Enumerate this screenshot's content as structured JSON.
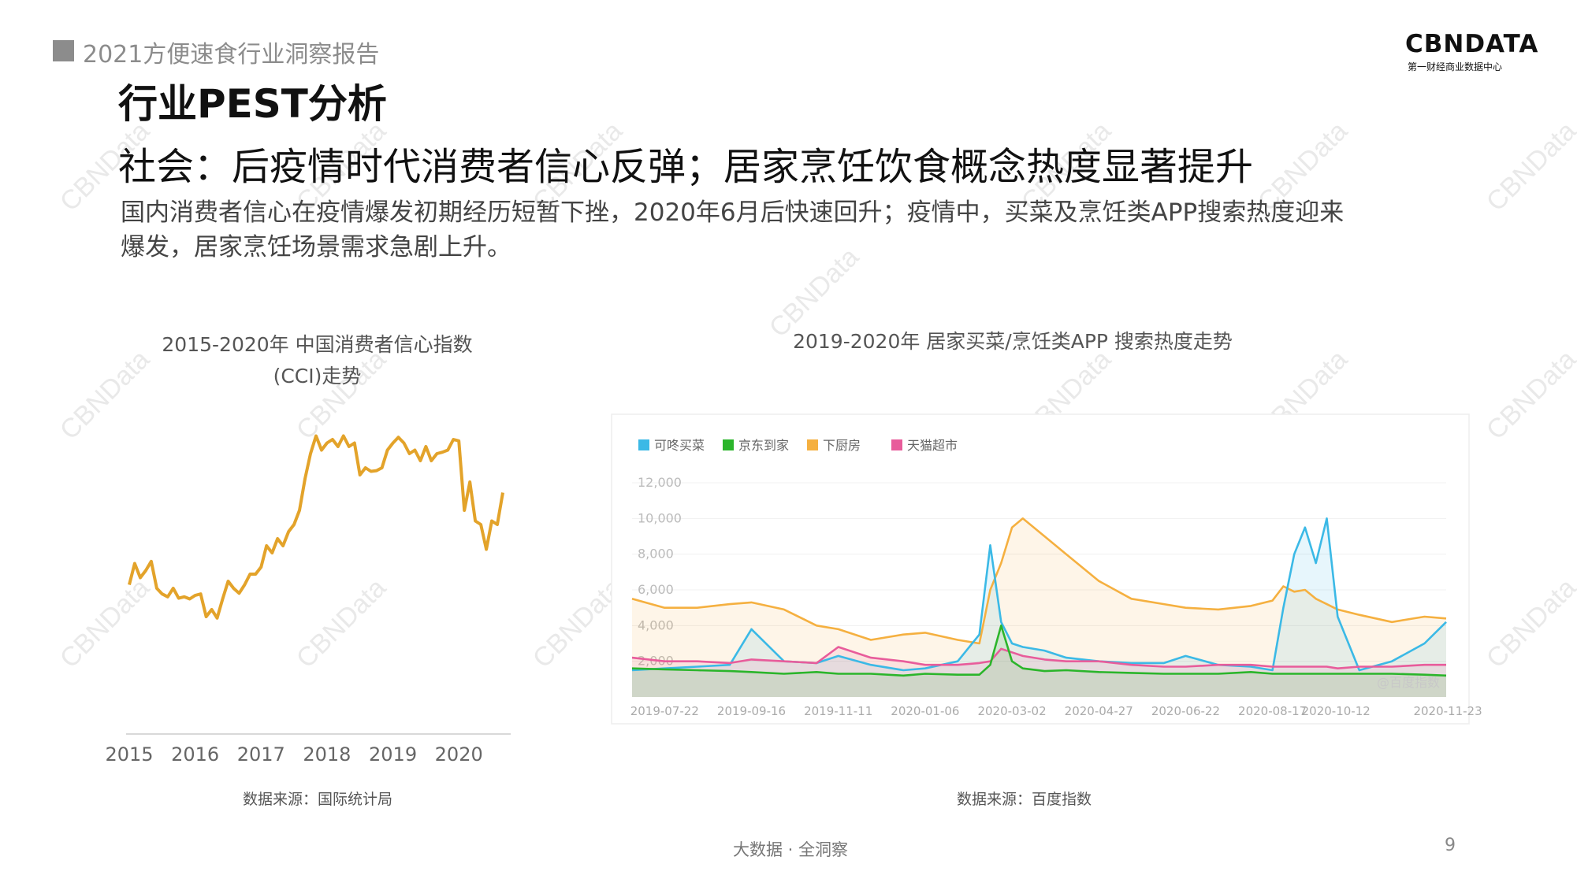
{
  "header": {
    "report_title": "2021方便速食行业洞察报告",
    "logo_text": "CBNDATA",
    "logo_subtitle": "第一财经商业数据中心"
  },
  "section_title": "行业PEST分析",
  "headline": "社会：后疫情时代消费者信心反弹；居家烹饪饮食概念热度显著提升",
  "description": {
    "line1": "国内消费者信心在疫情爆发初期经历短暂下挫，2020年6月后快速回升；疫情中，买菜及烹饪类APP搜索热度迎来",
    "line2": "爆发，居家烹饪场景需求急剧上升。"
  },
  "chart_data": [
    {
      "type": "line",
      "title_line1": "2015-2020年 中国消费者信心指数",
      "title_line2": "(CCI)走势",
      "x_ticks": [
        "2015",
        "2016",
        "2017",
        "2018",
        "2019",
        "2020"
      ],
      "color": "#E3A32A",
      "ylim": [
        95,
        130
      ],
      "series": [
        {
          "x": [
            2015.0,
            2015.083,
            2015.167,
            2015.25,
            2015.333,
            2015.417,
            2015.5,
            2015.583,
            2015.667,
            2015.75,
            2015.833,
            2015.917,
            2016.0,
            2016.083,
            2016.167,
            2016.25,
            2016.333,
            2016.417,
            2016.5,
            2016.583,
            2016.667,
            2016.75,
            2016.833,
            2016.917,
            2017.0,
            2017.083,
            2017.167,
            2017.25,
            2017.333,
            2017.417,
            2017.5,
            2017.583,
            2017.667,
            2017.75,
            2017.833,
            2017.917,
            2018.0,
            2018.083,
            2018.167,
            2018.25,
            2018.333,
            2018.417,
            2018.5,
            2018.583,
            2018.667,
            2018.75,
            2018.833,
            2018.917,
            2019.0,
            2019.083,
            2019.167,
            2019.25,
            2019.333,
            2019.417,
            2019.5,
            2019.583,
            2019.667,
            2019.75,
            2019.833,
            2019.917,
            2020.0,
            2020.083,
            2020.167,
            2020.25,
            2020.333,
            2020.417,
            2020.5,
            2020.583,
            2020.667
          ],
          "y": [
            107.5,
            110.5,
            108.5,
            109.5,
            110.8,
            107.0,
            106.2,
            105.8,
            107.0,
            105.6,
            105.8,
            105.5,
            106.0,
            106.2,
            103.0,
            104.0,
            102.8,
            105.5,
            108.0,
            107.0,
            106.3,
            107.5,
            109.0,
            109.0,
            110.0,
            113.0,
            112.0,
            114.0,
            113.0,
            115.0,
            116.0,
            118.0,
            122.5,
            126.0,
            128.5,
            126.5,
            127.5,
            128.0,
            127.0,
            128.5,
            127.0,
            127.5,
            123.0,
            124.0,
            123.5,
            123.6,
            124.0,
            126.5,
            127.5,
            128.3,
            127.5,
            126.0,
            126.5,
            125.0,
            127.0,
            125.0,
            126.0,
            126.2,
            126.5,
            128.0,
            127.8,
            118.0,
            122.0,
            116.5,
            116.0,
            112.5,
            116.5,
            116.0,
            120.5
          ]
        }
      ],
      "source": "数据来源：国际统计局"
    },
    {
      "type": "area",
      "title": "2019-2020年 居家买菜/烹饪类APP 搜索热度走势",
      "y_ticks": [
        "2,000",
        "4,000",
        "6,000",
        "8,000",
        "10,000",
        "12,000"
      ],
      "ylim": [
        0,
        12000
      ],
      "x_ticks": [
        "2019-07-22",
        "2019-09-16",
        "2019-11-11",
        "2020-01-06",
        "2020-03-02",
        "2020-04-27",
        "2020-06-22",
        "2020-08-17",
        "2020-10-12",
        "2020-11-23"
      ],
      "x": [
        "2019-07-01",
        "2019-07-22",
        "2019-08-12",
        "2019-09-02",
        "2019-09-16",
        "2019-10-07",
        "2019-10-28",
        "2019-11-11",
        "2019-12-02",
        "2019-12-23",
        "2020-01-06",
        "2020-01-27",
        "2020-02-10",
        "2020-02-17",
        "2020-02-24",
        "2020-03-02",
        "2020-03-09",
        "2020-03-23",
        "2020-04-06",
        "2020-04-27",
        "2020-05-18",
        "2020-06-08",
        "2020-06-22",
        "2020-07-13",
        "2020-08-03",
        "2020-08-17",
        "2020-08-24",
        "2020-08-31",
        "2020-09-07",
        "2020-09-14",
        "2020-09-21",
        "2020-09-28",
        "2020-10-12",
        "2020-11-02",
        "2020-11-23",
        "2020-12-07"
      ],
      "series": [
        {
          "name": "可咚买菜",
          "color": "#3BB9E6",
          "values": [
            1500,
            1600,
            1700,
            1800,
            3800,
            2000,
            1900,
            2300,
            1800,
            1500,
            1600,
            2000,
            3500,
            8500,
            4200,
            3000,
            2800,
            2600,
            2200,
            2000,
            1900,
            1900,
            2300,
            1800,
            1700,
            1500,
            5000,
            8000,
            9500,
            7500,
            10000,
            4500,
            1500,
            2000,
            3000,
            4200
          ]
        },
        {
          "name": "京东到家",
          "color": "#2BB52B",
          "values": [
            1600,
            1550,
            1500,
            1450,
            1400,
            1300,
            1400,
            1300,
            1300,
            1200,
            1300,
            1250,
            1250,
            1800,
            4000,
            2000,
            1600,
            1450,
            1500,
            1400,
            1350,
            1300,
            1300,
            1300,
            1400,
            1300,
            1300,
            1300,
            1300,
            1300,
            1300,
            1300,
            1300,
            1300,
            1250,
            1200
          ]
        },
        {
          "name": "下厨房",
          "color": "#F5B040",
          "values": [
            5500,
            5000,
            5000,
            5200,
            5300,
            4900,
            4000,
            3800,
            3200,
            3500,
            3600,
            3200,
            3000,
            6000,
            7500,
            9500,
            10000,
            9000,
            8000,
            6500,
            5500,
            5200,
            5000,
            4900,
            5100,
            5400,
            6200,
            5900,
            6000,
            5500,
            5200,
            4900,
            4600,
            4200,
            4500,
            4400
          ]
        },
        {
          "name": "天猫超市",
          "color": "#E85C9B",
          "values": [
            2200,
            2000,
            2000,
            1900,
            2100,
            2000,
            1900,
            2800,
            2200,
            2000,
            1800,
            1800,
            1900,
            2000,
            2700,
            2500,
            2300,
            2100,
            2000,
            2000,
            1800,
            1700,
            1700,
            1800,
            1800,
            1700,
            1700,
            1700,
            1700,
            1700,
            1700,
            1600,
            1700,
            1700,
            1800,
            1800
          ]
        }
      ],
      "watermark": "@百度指数",
      "source": "数据来源：百度指数"
    }
  ],
  "watermark_text": "CBNData",
  "footer": {
    "text": "大数据 · 全洞察",
    "page_number": "9"
  }
}
